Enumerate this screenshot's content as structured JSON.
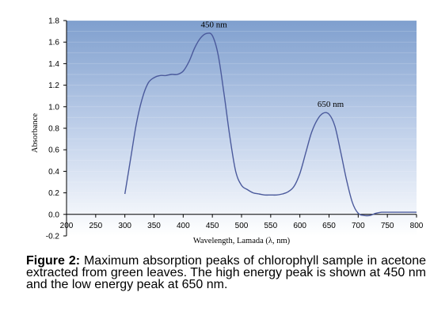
{
  "chart_data": {
    "type": "line",
    "title": "",
    "xlabel": "Wavelength, Lamada (λ, nm)",
    "ylabel": "Absorbance",
    "xlim": [
      200,
      800
    ],
    "ylim": [
      -0.2,
      1.8
    ],
    "x_ticks": [
      "200",
      "250",
      "300",
      "350",
      "400",
      "450",
      "500",
      "550",
      "600",
      "650",
      "700",
      "750",
      "800"
    ],
    "y_ticks": [
      "1.8",
      "1.6",
      "1.4",
      "1.2",
      "1.0",
      "0.8",
      "0.6",
      "0.4",
      "0.2",
      "0.0",
      "-0.2"
    ],
    "grid": false,
    "background": "blue-gradient",
    "series": [
      {
        "color": "#4b5a9c",
        "x": [
          300,
          310,
          320,
          330,
          340,
          350,
          360,
          370,
          380,
          390,
          400,
          410,
          420,
          430,
          440,
          450,
          460,
          470,
          480,
          490,
          500,
          510,
          520,
          530,
          540,
          550,
          560,
          570,
          580,
          590,
          600,
          610,
          620,
          630,
          640,
          650,
          660,
          670,
          680,
          690,
          700,
          710,
          720,
          730,
          740,
          750,
          760,
          770,
          780,
          790,
          800
        ],
        "y": [
          0.19,
          0.52,
          0.85,
          1.08,
          1.22,
          1.27,
          1.29,
          1.29,
          1.3,
          1.3,
          1.33,
          1.42,
          1.55,
          1.64,
          1.68,
          1.66,
          1.48,
          1.12,
          0.72,
          0.4,
          0.27,
          0.23,
          0.2,
          0.19,
          0.18,
          0.18,
          0.18,
          0.19,
          0.21,
          0.26,
          0.38,
          0.57,
          0.76,
          0.88,
          0.94,
          0.93,
          0.82,
          0.58,
          0.32,
          0.11,
          0.01,
          -0.01,
          -0.01,
          0.01,
          0.02,
          0.02,
          0.02,
          0.02,
          0.02,
          0.02,
          0.02
        ]
      }
    ],
    "annotations": [
      {
        "text": "450 nm",
        "x": 450,
        "y": 1.68
      },
      {
        "text": "650 nm",
        "x": 650,
        "y": 0.94
      }
    ]
  },
  "caption": {
    "label": "Figure 2:",
    "text": " Maximum absorption peaks of chlorophyll sample in acetone extracted from green leaves. The high energy peak is shown at 450 nm and the low energy peak at 650 nm."
  },
  "colors": {
    "line": "#4b5a9c",
    "gradient_top": "#7f9fce",
    "gradient_bottom": "#ffffff"
  }
}
